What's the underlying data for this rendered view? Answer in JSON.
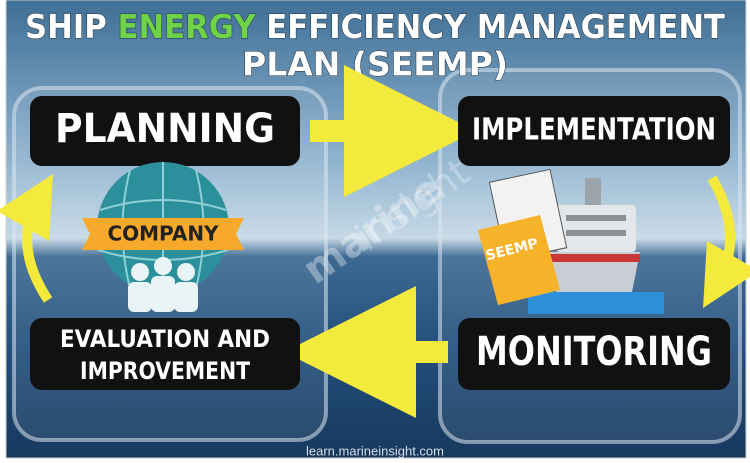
{
  "header": {
    "title_parts": [
      "SHIP",
      "ENERGY",
      "EFFICIENCY MANAGEMENT",
      "PLAN (SEEMP)"
    ]
  },
  "nodes": [
    {
      "label": "PLANNING"
    },
    {
      "label": "IMPLEMENTATION"
    },
    {
      "label": "MONITORING"
    },
    {
      "label": "EVALUATION AND"
    },
    {
      "label": "IMPROVEMENT"
    }
  ],
  "icons": {
    "company": "COMPANY",
    "document": "SEEMP"
  },
  "watermark": [
    "marine",
    "insight"
  ],
  "footer": "learn.marineinsight.com"
}
